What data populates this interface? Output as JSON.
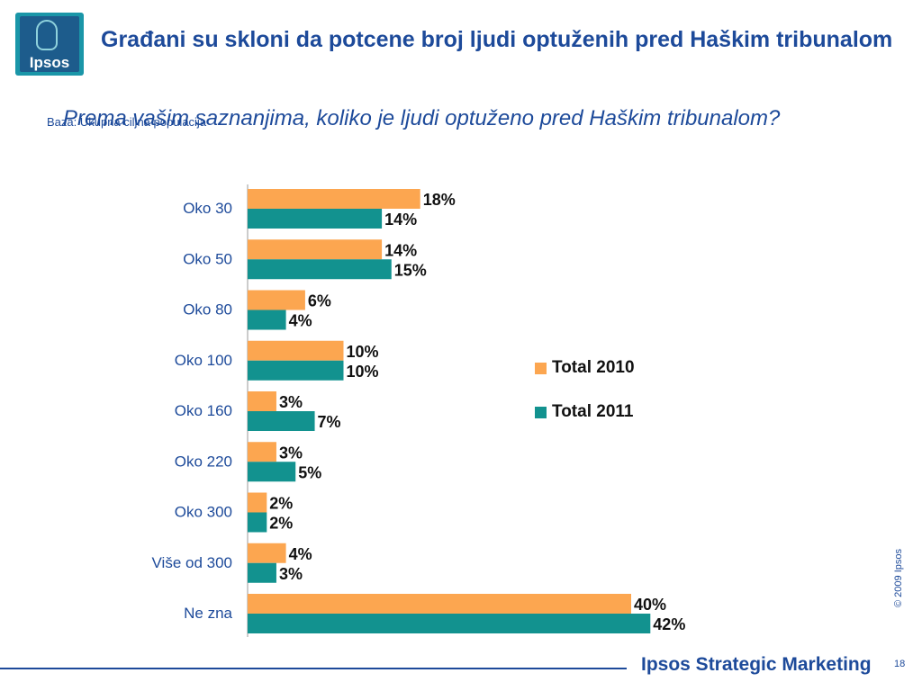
{
  "logo": {
    "text": "Ipsos"
  },
  "title": "Građani su skloni da potcene broj ljudi optuženih pred Haškim tribunalom",
  "question": "Prema vašim saznanjima, koliko je ljudi optuženo pred Haškim tribunalom?",
  "base": "Baza: Ukupna ciljna populacija",
  "colors": {
    "total_2010": "#fca650",
    "total_2011": "#12928f",
    "label": "#1d4a9a",
    "axis": "#9a9a9a"
  },
  "chart_data": {
    "type": "bar",
    "orientation": "horizontal",
    "categories": [
      "Oko 30",
      "Oko 50",
      "Oko 80",
      "Oko 100",
      "Oko 160",
      "Oko 220",
      "Oko 300",
      "Više od 300",
      "Ne zna"
    ],
    "series": [
      {
        "name": "Total 2010",
        "values": [
          18,
          14,
          6,
          10,
          3,
          3,
          2,
          4,
          40
        ],
        "labels": [
          "18%",
          "14%",
          "6%",
          "10%",
          "3%",
          "3%",
          "2%",
          "4%",
          "40%"
        ]
      },
      {
        "name": "Total 2011",
        "values": [
          14,
          15,
          4,
          10,
          7,
          5,
          2,
          3,
          42
        ],
        "labels": [
          "14%",
          "15%",
          "4%",
          "10%",
          "7%",
          "5%",
          "2%",
          "3%",
          "42%"
        ]
      }
    ],
    "xlim": [
      0,
      44
    ],
    "legend_position": "right",
    "grid": false
  },
  "footer": {
    "copyright": "© 2009 Ipsos",
    "brand": "Ipsos Strategic Marketing",
    "page": "18"
  }
}
